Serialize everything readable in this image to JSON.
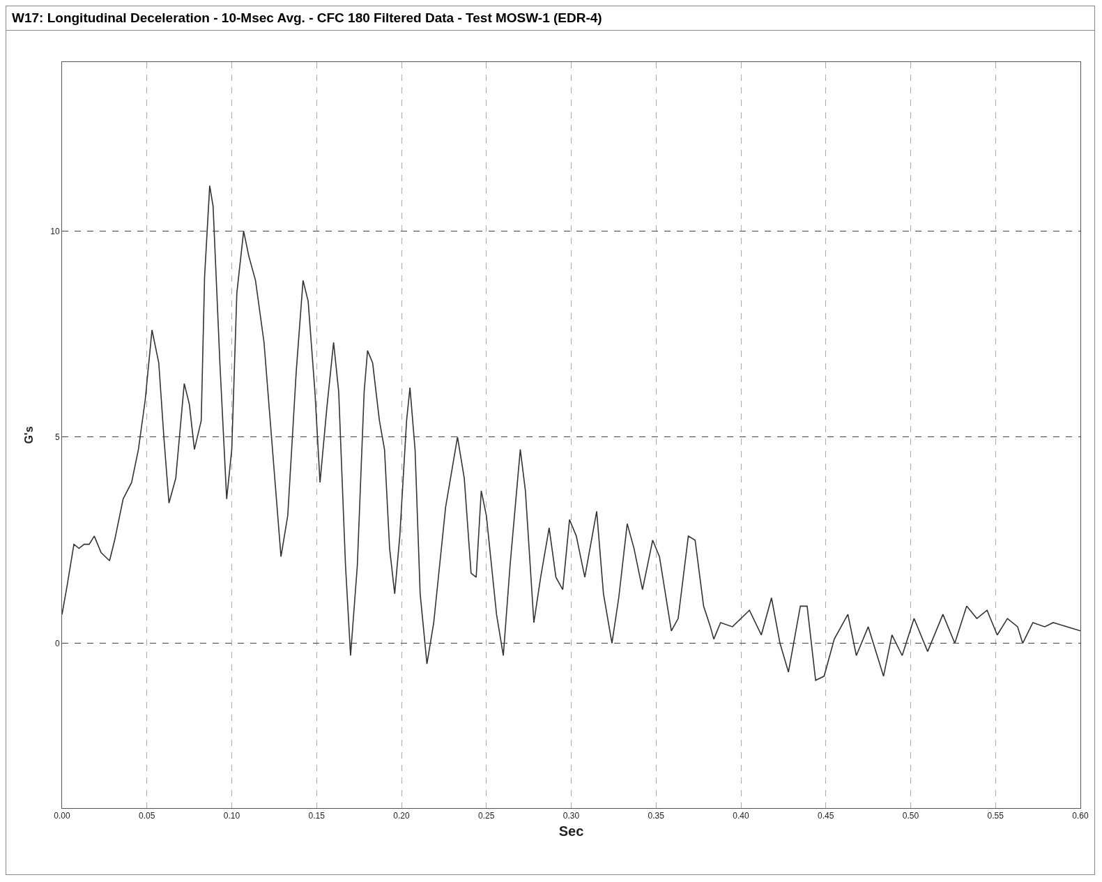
{
  "chart_data": {
    "type": "line",
    "title": "W17: Longitudinal Deceleration - 10-Msec Avg. - CFC 180 Filtered Data - Test MOSW-1 (EDR-4)",
    "xlabel": "Sec",
    "ylabel": "G's",
    "xlim": [
      0,
      0.6
    ],
    "ylim": [
      -4,
      14.1
    ],
    "xticks": [
      {
        "value": 0,
        "label": "0.00"
      },
      {
        "value": 0.05,
        "label": "0.05"
      },
      {
        "value": 0.1,
        "label": "0.10"
      },
      {
        "value": 0.15,
        "label": "0.15"
      },
      {
        "value": 0.2,
        "label": "0.20"
      },
      {
        "value": 0.25,
        "label": "0.25"
      },
      {
        "value": 0.3,
        "label": "0.30"
      },
      {
        "value": 0.35,
        "label": "0.35"
      },
      {
        "value": 0.4,
        "label": "0.40"
      },
      {
        "value": 0.45,
        "label": "0.45"
      },
      {
        "value": 0.5,
        "label": "0.50"
      },
      {
        "value": 0.55,
        "label": "0.55"
      },
      {
        "value": 0.6,
        "label": "0.60"
      }
    ],
    "yticks": [
      0,
      5,
      10
    ],
    "grid": true,
    "line_style": "solid",
    "marker": "none",
    "series": [
      {
        "color": "#333333",
        "x": [
          0,
          0.003,
          0.007,
          0.01,
          0.013,
          0.016,
          0.019,
          0.023,
          0.028,
          0.031,
          0.036,
          0.041,
          0.045,
          0.049,
          0.053,
          0.057,
          0.06,
          0.063,
          0.067,
          0.072,
          0.075,
          0.078,
          0.082,
          0.084,
          0.087,
          0.089,
          0.093,
          0.097,
          0.1,
          0.103,
          0.107,
          0.11,
          0.114,
          0.119,
          0.124,
          0.129,
          0.133,
          0.138,
          0.142,
          0.145,
          0.149,
          0.152,
          0.156,
          0.16,
          0.163,
          0.167,
          0.17,
          0.174,
          0.178,
          0.18,
          0.183,
          0.187,
          0.19,
          0.193,
          0.196,
          0.199,
          0.203,
          0.205,
          0.208,
          0.211,
          0.215,
          0.219,
          0.226,
          0.233,
          0.237,
          0.241,
          0.244,
          0.247,
          0.25,
          0.256,
          0.26,
          0.264,
          0.27,
          0.273,
          0.278,
          0.282,
          0.287,
          0.291,
          0.295,
          0.299,
          0.303,
          0.308,
          0.315,
          0.319,
          0.324,
          0.328,
          0.333,
          0.337,
          0.342,
          0.348,
          0.352,
          0.359,
          0.363,
          0.369,
          0.373,
          0.378,
          0.382,
          0.384,
          0.388,
          0.395,
          0.405,
          0.412,
          0.418,
          0.423,
          0.428,
          0.435,
          0.439,
          0.444,
          0.449,
          0.455,
          0.463,
          0.468,
          0.475,
          0.484,
          0.489,
          0.495,
          0.502,
          0.51,
          0.519,
          0.526,
          0.533,
          0.539,
          0.545,
          0.551,
          0.557,
          0.563,
          0.566,
          0.572,
          0.579,
          0.584,
          0.6
        ],
        "values": [
          0.7,
          1.4,
          2.4,
          2.3,
          2.4,
          2.4,
          2.6,
          2.2,
          2.0,
          2.5,
          3.5,
          3.9,
          4.7,
          5.9,
          7.6,
          6.8,
          5.0,
          3.4,
          4.0,
          6.3,
          5.8,
          4.7,
          5.4,
          8.9,
          11.1,
          10.6,
          6.8,
          3.5,
          4.7,
          8.5,
          10.0,
          9.4,
          8.8,
          7.3,
          4.7,
          2.1,
          3.1,
          6.6,
          8.8,
          8.3,
          6.1,
          3.9,
          5.7,
          7.3,
          6.1,
          1.9,
          -0.3,
          1.9,
          6.1,
          7.1,
          6.8,
          5.4,
          4.7,
          2.3,
          1.2,
          2.6,
          5.4,
          6.2,
          4.7,
          1.2,
          -0.5,
          0.5,
          3.3,
          5.0,
          4.0,
          1.7,
          1.6,
          3.7,
          3.1,
          0.7,
          -0.3,
          1.9,
          4.7,
          3.7,
          0.5,
          1.6,
          2.8,
          1.6,
          1.3,
          3.0,
          2.6,
          1.6,
          3.2,
          1.2,
          0.0,
          1.1,
          2.9,
          2.3,
          1.3,
          2.5,
          2.1,
          0.3,
          0.6,
          2.6,
          2.5,
          0.9,
          0.4,
          0.1,
          0.5,
          0.4,
          0.8,
          0.2,
          1.1,
          0.0,
          -0.7,
          0.9,
          0.9,
          -0.9,
          -0.8,
          0.1,
          0.7,
          -0.3,
          0.4,
          -0.8,
          0.2,
          -0.3,
          0.6,
          -0.2,
          0.7,
          0.0,
          0.9,
          0.6,
          0.8,
          0.2,
          0.6,
          0.4,
          0.0,
          0.5,
          0.4,
          0.5,
          0.3
        ]
      }
    ]
  }
}
